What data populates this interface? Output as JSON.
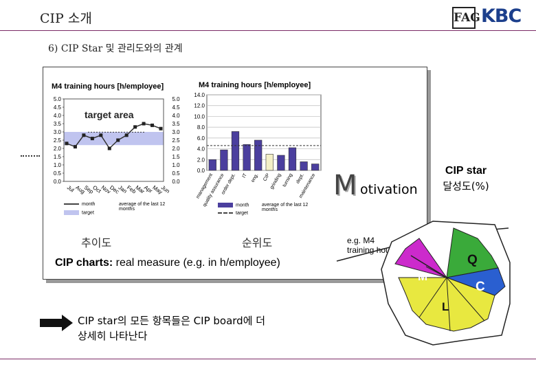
{
  "header": {
    "title": "CIP 소개",
    "logo_fag": "FAG",
    "logo_kbc": "KBC",
    "subtitle": "6) CIP Star 및 관리도와의 관계"
  },
  "left_panel": {
    "title": "M4  training hours [h/employee]",
    "target_label": "target area",
    "legend_month": "month",
    "legend_target": "target",
    "legend_avg": "average of the last 12 months",
    "caption": "추이도"
  },
  "right_panel": {
    "title": "M4 training hours [h/employee]",
    "legend_month": "month",
    "legend_target": "target",
    "legend_avg": "average of the last 12 months",
    "caption": "순위도"
  },
  "cip_caption_bold": "CIP charts:",
  "cip_caption_rest": " real measure (e.g. in h/employee)",
  "bottom_text_line1": "CIP star의 모든 항목들은 CIP board에 더",
  "bottom_text_line2": "상세히 나타난다",
  "motivation": {
    "first": "M",
    "rest": "otivation"
  },
  "star": {
    "label_line1": "CIP star",
    "label_line2": "달성도(%)",
    "eg_text": "e.g. M4 training hours",
    "sectors": [
      {
        "letter": "Q",
        "color": "#3aaa3a"
      },
      {
        "letter": "C",
        "color": "#2a5fd0"
      },
      {
        "letter": "L",
        "color": "#e8e840"
      },
      {
        "letter": "M",
        "color": "#cc2acc"
      }
    ]
  },
  "chart_data": [
    {
      "type": "line",
      "title": "M4  training hours [h/employee]",
      "categories": [
        "Jul",
        "Aug",
        "Sep",
        "Oct",
        "Nov",
        "Dec",
        "Jan",
        "Feb",
        "Mar",
        "Apr",
        "May",
        "Jun"
      ],
      "series": [
        {
          "name": "month",
          "values": [
            2.3,
            2.1,
            2.8,
            2.6,
            2.8,
            2.0,
            2.5,
            2.8,
            3.3,
            3.5,
            3.4,
            3.2
          ]
        }
      ],
      "target": [
        2.2,
        3.0
      ],
      "y_left_ticks": [
        "5.0",
        "4.5",
        "4.0",
        "3.5",
        "3.0",
        "2.5",
        "2.0",
        "1.5",
        "1.0",
        "0.5",
        "0.0"
      ],
      "y_right_ticks": [
        "5.0",
        "4.5",
        "4.0",
        "3.5",
        "3.0",
        "2.5",
        "2.0",
        "1.5",
        "1.0",
        "0.5",
        "0.0"
      ],
      "ylim": [
        0,
        5
      ]
    },
    {
      "type": "bar",
      "title": "M4 training hours [h/employee]",
      "categories": [
        "management",
        "quality assurance",
        "order dept.",
        "IT",
        "eng.",
        "CIP",
        "grinding",
        "turning",
        "dept.",
        "maintenance"
      ],
      "values": [
        2.0,
        3.8,
        7.2,
        4.8,
        5.6,
        3.0,
        2.8,
        4.2,
        1.6,
        1.2
      ],
      "target": 4.6,
      "highlight_index": 5,
      "y_ticks": [
        "14.0",
        "12.0",
        "10.0",
        "8.0",
        "6.0",
        "4.0",
        "2.0",
        "0.0"
      ],
      "ylim": [
        0,
        14
      ]
    }
  ]
}
